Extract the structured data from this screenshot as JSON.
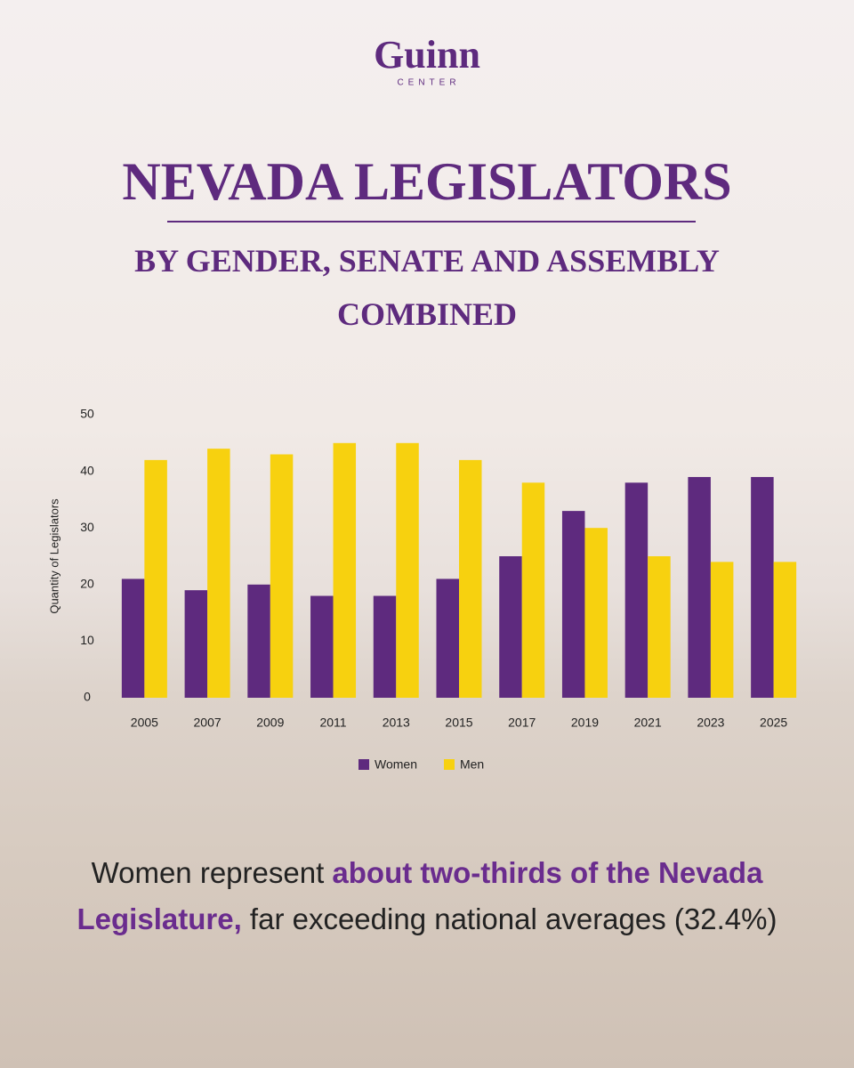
{
  "header": {
    "logo": "Guinn",
    "logo_sub": "CENTER"
  },
  "chart_data": {
    "type": "bar",
    "title": "NEVADA LEGISLATORS",
    "subtitle": "BY GENDER, SENATE AND ASSEMBLY COMBINED",
    "y_label": "Quantity of Legislators",
    "categories": [
      "2005",
      "2007",
      "2009",
      "2011",
      "2013",
      "2015",
      "2017",
      "2019",
      "2021",
      "2023",
      "2025"
    ],
    "series": [
      {
        "name": "Women",
        "color": "#5e2a7e",
        "values": [
          21,
          19,
          20,
          18,
          18,
          21,
          25,
          33,
          38,
          39,
          39
        ]
      },
      {
        "name": "Men",
        "color": "#f7d10f",
        "values": [
          42,
          44,
          43,
          45,
          45,
          42,
          38,
          30,
          25,
          24,
          24
        ]
      }
    ],
    "ylim": [
      0,
      50
    ],
    "yticks": [
      0,
      10,
      20,
      30,
      40,
      50
    ],
    "grid": false,
    "legend": "bottom"
  },
  "caption": {
    "plain_start": "Women represent",
    "highlight": "about two-thirds of the Nevada Legislature,",
    "plain_end": "far exceeding national averages (32.4%)"
  }
}
